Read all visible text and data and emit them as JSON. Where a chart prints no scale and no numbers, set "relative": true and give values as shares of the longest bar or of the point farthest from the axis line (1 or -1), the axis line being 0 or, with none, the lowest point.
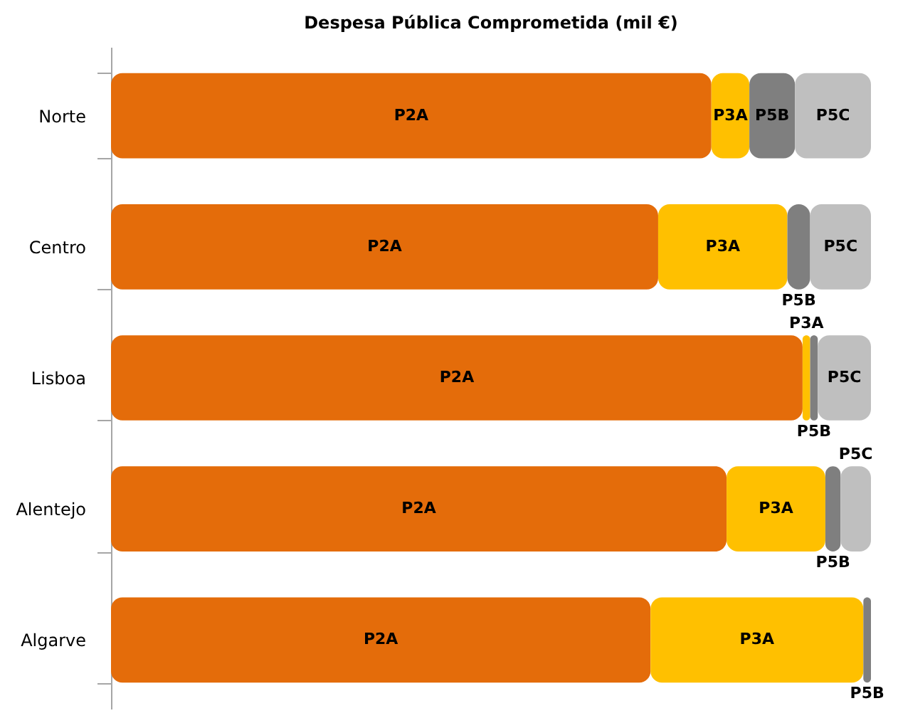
{
  "chart_data": {
    "type": "bar",
    "title": "Despesa Pública Comprometida (mil €)",
    "orientation": "horizontal",
    "stacked": true,
    "relative": true,
    "legend": false,
    "grid": false,
    "categories": [
      "Norte",
      "Centro",
      "Lisboa",
      "Alentejo",
      "Algarve"
    ],
    "series": [
      {
        "name": "P2A",
        "color": "#e46c0a",
        "values": [
          0.79,
          0.72,
          0.91,
          0.81,
          0.71
        ]
      },
      {
        "name": "P3A",
        "color": "#ffc000",
        "values": [
          0.05,
          0.17,
          0.01,
          0.13,
          0.28
        ]
      },
      {
        "name": "P5B",
        "color": "#7f7f7f",
        "values": [
          0.06,
          0.03,
          0.01,
          0.02,
          0.01
        ]
      },
      {
        "name": "P5C",
        "color": "#bfbfbf",
        "values": [
          0.1,
          0.08,
          0.07,
          0.04,
          0
        ]
      }
    ]
  }
}
